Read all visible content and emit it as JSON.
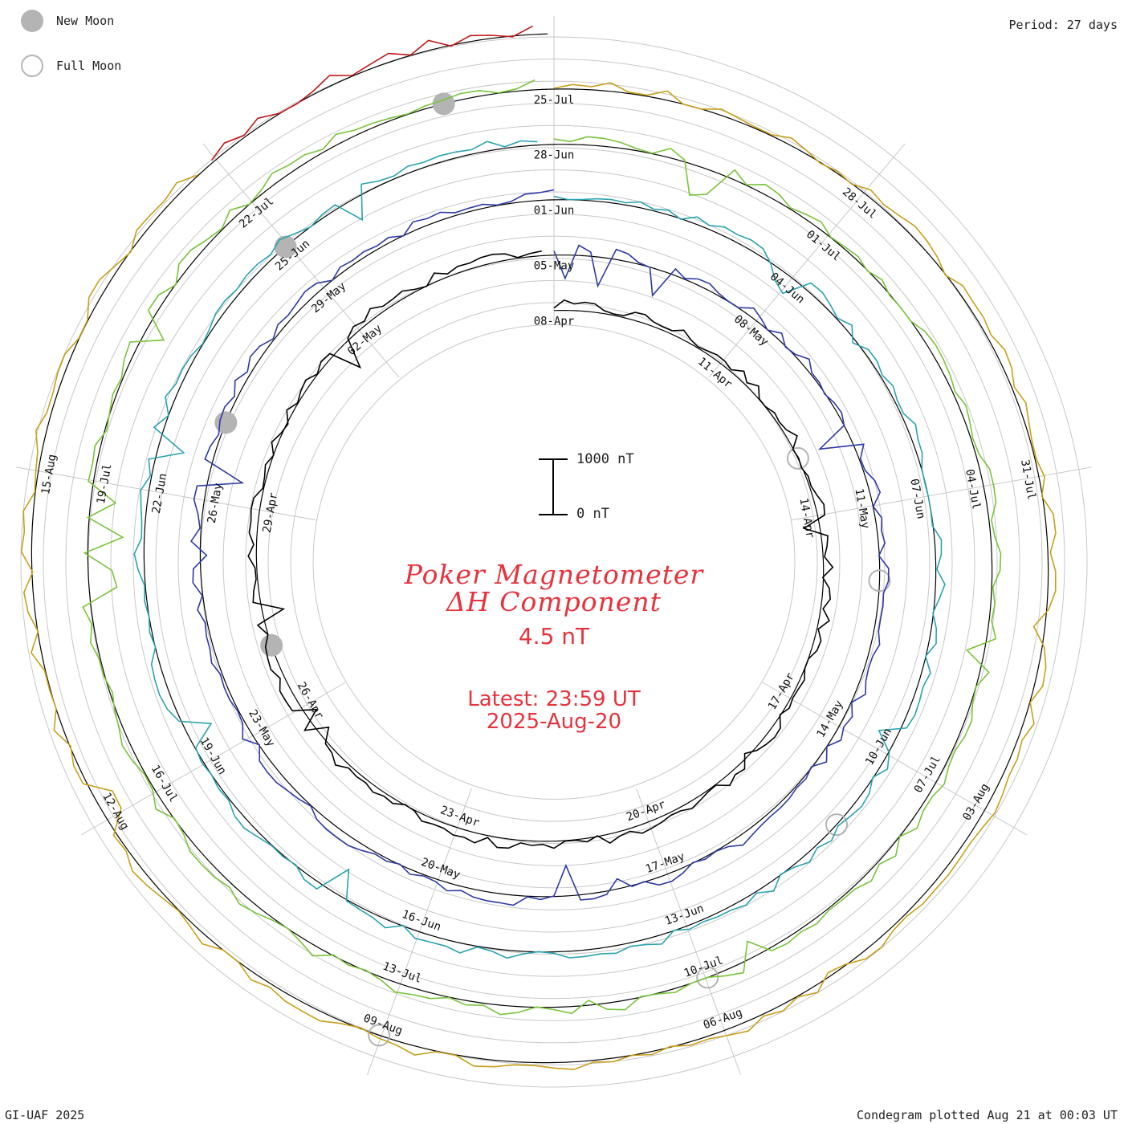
{
  "legend": {
    "new_moon": "New Moon",
    "full_moon": "Full Moon"
  },
  "header": {
    "period": "Period: 27 days"
  },
  "footer": {
    "credit": "GI-UAF 2025",
    "plotted": "Condegram plotted Aug 21 at 00:03 UT"
  },
  "title": {
    "line1": "Poker Magnetometer",
    "line2": "ΔH Component",
    "resolution": "4.5 nT",
    "latest": "Latest: 23:59 UT",
    "latest_date": "2025-Aug-20"
  },
  "scale": {
    "top_label": "1000 nT",
    "bottom_label": "0 nT"
  },
  "colors": {
    "title": "#e8323c",
    "grid": "#c8c8c8",
    "baseline": "#000000",
    "moon": "#b4b4b4"
  },
  "chart_data": {
    "type": "line",
    "title": "Poker Magnetometer ΔH Component",
    "subtitle": "4.5 nT",
    "layout": "spiral condegram",
    "period_days": 27,
    "units": "nT",
    "scale_bar": [
      0,
      1000
    ],
    "start_date": "2025-04-08",
    "end_date": "2025-08-20",
    "cycles": [
      {
        "start": "2025-04-08",
        "color": "#000000",
        "tick_labels": [
          "08-Apr",
          "11-Apr",
          "14-Apr",
          "17-Apr",
          "20-Apr",
          "23-Apr",
          "26-Apr",
          "29-Apr",
          "02-May"
        ]
      },
      {
        "start": "2025-05-05",
        "color": "#2e3aa8",
        "tick_labels": [
          "05-May",
          "08-May",
          "11-May",
          "14-May",
          "17-May",
          "20-May",
          "23-May",
          "26-May",
          "29-May"
        ]
      },
      {
        "start": "2025-06-01",
        "color": "#2aa3b0",
        "tick_labels": [
          "01-Jun",
          "04-Jun",
          "07-Jun",
          "10-Jun",
          "13-Jun",
          "16-Jun",
          "19-Jun",
          "22-Jun",
          "25-Jun"
        ]
      },
      {
        "start": "2025-06-28",
        "color": "#7ac43a",
        "tick_labels": [
          "28-Jun",
          "01-Jul",
          "04-Jul",
          "07-Jul",
          "10-Jul",
          "13-Jul",
          "16-Jul",
          "19-Jul",
          "22-Jul"
        ]
      },
      {
        "start": "2025-07-25",
        "color": "#c8a018",
        "tick_labels": [
          "25-Jul",
          "28-Jul",
          "31-Jul",
          "03-Aug",
          "06-Aug",
          "09-Aug",
          "12-Aug",
          "15-Aug"
        ]
      },
      {
        "start": "2025-08-18",
        "color": "#c01818",
        "tick_labels": []
      }
    ],
    "new_moon_dates": [
      "2025-04-27",
      "2025-05-27",
      "2025-06-25",
      "2025-07-24"
    ],
    "full_moon_dates": [
      "2025-04-13",
      "2025-05-12",
      "2025-06-11",
      "2025-07-10",
      "2025-08-09"
    ],
    "samples_per_day": 6
  }
}
